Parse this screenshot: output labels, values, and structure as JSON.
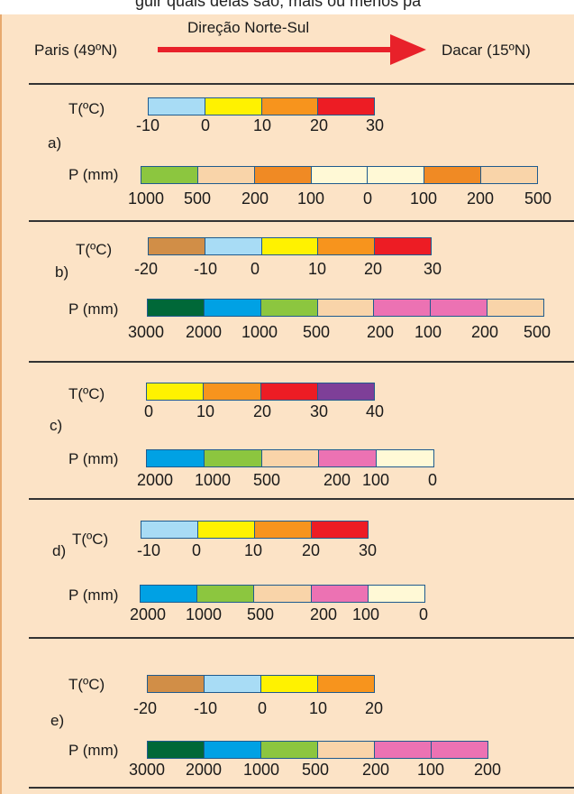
{
  "header": {
    "cut_text": "guir quais delas são, mais ou menos pa",
    "direction_label": "Direção Norte-Sul",
    "origin_city": "Paris (49ºN)",
    "dest_city": "Dacar (15ºN)",
    "arrow_color": "#e8212a"
  },
  "colors": {
    "lightblue": "#a8dcf5",
    "yellow": "#fff200",
    "orange": "#f7941d",
    "red": "#ed1c24",
    "purple": "#7e3f98",
    "brown": "#d18e47",
    "lightgreen": "#8cc63f",
    "darkgreen": "#006838",
    "blue": "#00a1e4",
    "peach": "#f9d4a9",
    "cream": "#fff9d6",
    "pink": "#ec72b3",
    "darkorange": "#f08a24",
    "panel_bg": "#fce3c6",
    "bar_border": "#1f5b8e"
  },
  "options": [
    {
      "letter": "a)",
      "t_label": "T(ºC)",
      "t_segments": [
        "lightblue",
        "yellow",
        "orange",
        "red"
      ],
      "t_ticks": [
        "-10",
        "0",
        "10",
        "20",
        "30"
      ],
      "p_label": "P (mm)",
      "p_segments": [
        "lightgreen",
        "peach",
        "darkorange",
        "cream",
        "cream",
        "darkorange",
        "peach"
      ],
      "p_ticks": [
        "1000",
        "500",
        "200",
        "100",
        "0",
        "100",
        "200",
        "500"
      ]
    },
    {
      "letter": "b)",
      "t_label": "T(ºC)",
      "t_segments": [
        "brown",
        "lightblue",
        "yellow",
        "orange",
        "red"
      ],
      "t_ticks": [
        "-20",
        "-10",
        "0",
        "10",
        "20",
        "30"
      ],
      "p_label": "P (mm)",
      "p_segments": [
        "darkgreen",
        "blue",
        "lightgreen",
        "peach",
        "pink",
        "pink",
        "peach"
      ],
      "p_ticks": [
        "3000",
        "2000",
        "1000",
        "500",
        "200",
        "100",
        "200",
        "500"
      ]
    },
    {
      "letter": "c)",
      "t_label": "T(ºC)",
      "t_segments": [
        "yellow",
        "orange",
        "red",
        "purple"
      ],
      "t_ticks": [
        "0",
        "10",
        "20",
        "30",
        "40"
      ],
      "p_label": "P (mm)",
      "p_segments": [
        "blue",
        "lightgreen",
        "peach",
        "pink",
        "cream"
      ],
      "p_ticks": [
        "2000",
        "1000",
        "500",
        "200",
        "100",
        "0"
      ]
    },
    {
      "letter": "d)",
      "t_label": "T(ºC)",
      "t_segments": [
        "lightblue",
        "yellow",
        "orange",
        "red"
      ],
      "t_ticks": [
        "-10",
        "0",
        "10",
        "20",
        "30"
      ],
      "p_label": "P (mm)",
      "p_segments": [
        "blue",
        "lightgreen",
        "peach",
        "pink",
        "cream"
      ],
      "p_ticks": [
        "2000",
        "1000",
        "500",
        "200",
        "100",
        "0"
      ]
    },
    {
      "letter": "e)",
      "t_label": "T(ºC)",
      "t_segments": [
        "brown",
        "lightblue",
        "yellow",
        "orange"
      ],
      "t_ticks": [
        "-20",
        "-10",
        "0",
        "10",
        "20"
      ],
      "p_label": "P (mm)",
      "p_segments": [
        "darkgreen",
        "blue",
        "lightgreen",
        "peach",
        "pink",
        "pink"
      ],
      "p_ticks": [
        "3000",
        "2000",
        "1000",
        "500",
        "200",
        "100",
        "200"
      ]
    }
  ]
}
